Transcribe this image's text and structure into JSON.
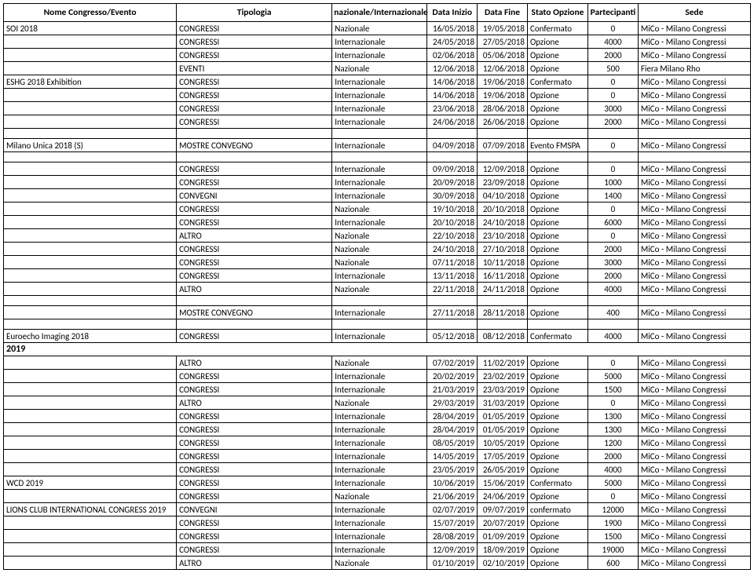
{
  "columns": {
    "nome": "Nome Congresso/Evento",
    "tipologia": "Tipologia",
    "naz": "nazionale/Internazionale",
    "inizio": "Data Inizio",
    "fine": "Data Fine",
    "stato": "Stato Opzione",
    "part": "Partecipanti",
    "sede": "Sede"
  },
  "rows": [
    {
      "nome": "SOI 2018",
      "tipologia": "CONGRESSI",
      "naz": "Nazionale",
      "inizio": "16/05/2018",
      "fine": "19/05/2018",
      "stato": "Confermato",
      "part": "0",
      "sede": "MiCo - Milano Congressi"
    },
    {
      "nome": "",
      "tipologia": "CONGRESSI",
      "naz": "Internazionale",
      "inizio": "24/05/2018",
      "fine": "27/05/2018",
      "stato": "Opzione",
      "part": "4000",
      "sede": "MiCo - Milano Congressi"
    },
    {
      "nome": "",
      "tipologia": "CONGRESSI",
      "naz": "Internazionale",
      "inizio": "02/06/2018",
      "fine": "05/06/2018",
      "stato": "Opzione",
      "part": "2000",
      "sede": "MiCo - Milano Congressi"
    },
    {
      "nome": "",
      "tipologia": "EVENTI",
      "naz": "Nazionale",
      "inizio": "12/06/2018",
      "fine": "12/06/2018",
      "stato": "Opzione",
      "part": "500",
      "sede": "Fiera Milano Rho"
    },
    {
      "nome": "ESHG 2018 Exhibition",
      "tipologia": "CONGRESSI",
      "naz": "Internazionale",
      "inizio": "14/06/2018",
      "fine": "19/06/2018",
      "stato": "Confermato",
      "part": "0",
      "sede": "MiCo - Milano Congressi"
    },
    {
      "nome": "",
      "tipologia": "CONGRESSI",
      "naz": "Internazionale",
      "inizio": "14/06/2018",
      "fine": "19/06/2018",
      "stato": "Opzione",
      "part": "0",
      "sede": "MiCo - Milano Congressi"
    },
    {
      "nome": "",
      "tipologia": "CONGRESSI",
      "naz": "Internazionale",
      "inizio": "23/06/2018",
      "fine": "28/06/2018",
      "stato": "Opzione",
      "part": "3000",
      "sede": "MiCo - Milano Congressi"
    },
    {
      "nome": "",
      "tipologia": "CONGRESSI",
      "naz": "Internazionale",
      "inizio": "24/06/2018",
      "fine": "26/06/2018",
      "stato": "Opzione",
      "part": "2000",
      "sede": "MiCo - Milano Congressi"
    },
    {
      "spacer": true
    },
    {
      "nome": "Milano Unica 2018 (S)",
      "tipologia": "MOSTRE CONVEGNO",
      "naz": "Internazionale",
      "inizio": "04/09/2018",
      "fine": "07/09/2018",
      "stato": "Evento FMSPA",
      "part": "0",
      "sede": "MiCo - Milano Congressi"
    },
    {
      "spacer": true
    },
    {
      "nome": "",
      "tipologia": "CONGRESSI",
      "naz": "Internazionale",
      "inizio": "09/09/2018",
      "fine": "12/09/2018",
      "stato": "Opzione",
      "part": "0",
      "sede": "MiCo - Milano Congressi"
    },
    {
      "nome": "",
      "tipologia": "CONGRESSI",
      "naz": "Internazionale",
      "inizio": "20/09/2018",
      "fine": "23/09/2018",
      "stato": "Opzione",
      "part": "1000",
      "sede": "MiCo - Milano Congressi"
    },
    {
      "nome": "",
      "tipologia": "CONVEGNI",
      "naz": "Internazionale",
      "inizio": "30/09/2018",
      "fine": "04/10/2018",
      "stato": "Opzione",
      "part": "1400",
      "sede": "MiCo - Milano Congressi"
    },
    {
      "nome": "",
      "tipologia": "CONGRESSI",
      "naz": "Nazionale",
      "inizio": "19/10/2018",
      "fine": "20/10/2018",
      "stato": "Opzione",
      "part": "0",
      "sede": "MiCo - Milano Congressi"
    },
    {
      "nome": "",
      "tipologia": "CONGRESSI",
      "naz": "Internazionale",
      "inizio": "20/10/2018",
      "fine": "24/10/2018",
      "stato": "Opzione",
      "part": "6000",
      "sede": "MiCo - Milano Congressi"
    },
    {
      "nome": "",
      "tipologia": "ALTRO",
      "naz": "Nazionale",
      "inizio": "22/10/2018",
      "fine": "23/10/2018",
      "stato": "Opzione",
      "part": "0",
      "sede": "MiCo - Milano Congressi"
    },
    {
      "nome": "",
      "tipologia": "CONGRESSI",
      "naz": "Nazionale",
      "inizio": "24/10/2018",
      "fine": "27/10/2018",
      "stato": "Opzione",
      "part": "2000",
      "sede": "MiCo - Milano Congressi"
    },
    {
      "nome": "",
      "tipologia": "CONGRESSI",
      "naz": "Nazionale",
      "inizio": "07/11/2018",
      "fine": "10/11/2018",
      "stato": "Opzione",
      "part": "3000",
      "sede": "MiCo - Milano Congressi"
    },
    {
      "nome": "",
      "tipologia": "CONGRESSI",
      "naz": "Internazionale",
      "inizio": "13/11/2018",
      "fine": "16/11/2018",
      "stato": "Opzione",
      "part": "2000",
      "sede": "MiCo - Milano Congressi"
    },
    {
      "nome": "",
      "tipologia": "ALTRO",
      "naz": "Nazionale",
      "inizio": "22/11/2018",
      "fine": "24/11/2018",
      "stato": "Opzione",
      "part": "4000",
      "sede": "MiCo - Milano Congressi"
    },
    {
      "spacer": true
    },
    {
      "nome": "",
      "tipologia": "MOSTRE CONVEGNO",
      "naz": "Internazionale",
      "inizio": "27/11/2018",
      "fine": "28/11/2018",
      "stato": "Opzione",
      "part": "400",
      "sede": "MiCo - Milano Congressi"
    },
    {
      "spacer": true
    },
    {
      "nome": "Euroecho Imaging 2018",
      "tipologia": "CONGRESSI",
      "naz": "Internazionale",
      "inizio": "05/12/2018",
      "fine": "08/12/2018",
      "stato": "Confermato",
      "part": "4000",
      "sede": "MiCo - Milano Congressi"
    },
    {
      "year": "2019"
    },
    {
      "nome": "",
      "tipologia": "ALTRO",
      "naz": "Nazionale",
      "inizio": "07/02/2019",
      "fine": "11/02/2019",
      "stato": "Opzione",
      "part": "0",
      "sede": "MiCo - Milano Congressi"
    },
    {
      "nome": "",
      "tipologia": "CONGRESSI",
      "naz": "Internazionale",
      "inizio": "20/02/2019",
      "fine": "23/02/2019",
      "stato": "Opzione",
      "part": "5000",
      "sede": "MiCo - Milano Congressi"
    },
    {
      "nome": "",
      "tipologia": "CONGRESSI",
      "naz": "Internazionale",
      "inizio": "21/03/2019",
      "fine": "23/03/2019",
      "stato": "Opzione",
      "part": "1500",
      "sede": "MiCo - Milano Congressi"
    },
    {
      "nome": "",
      "tipologia": "ALTRO",
      "naz": "Nazionale",
      "inizio": "29/03/2019",
      "fine": "31/03/2019",
      "stato": "Opzione",
      "part": "0",
      "sede": "MiCo - Milano Congressi"
    },
    {
      "nome": "",
      "tipologia": "CONGRESSI",
      "naz": "Internazionale",
      "inizio": "28/04/2019",
      "fine": "01/05/2019",
      "stato": "Opzione",
      "part": "1300",
      "sede": "MiCo - Milano Congressi"
    },
    {
      "nome": "",
      "tipologia": "CONGRESSI",
      "naz": "Internazionale",
      "inizio": "28/04/2019",
      "fine": "01/05/2019",
      "stato": "Opzione",
      "part": "1300",
      "sede": "MiCo - Milano Congressi"
    },
    {
      "nome": "",
      "tipologia": "CONGRESSI",
      "naz": "Internazionale",
      "inizio": "08/05/2019",
      "fine": "10/05/2019",
      "stato": "Opzione",
      "part": "1200",
      "sede": "MiCo - Milano Congressi"
    },
    {
      "nome": "",
      "tipologia": "CONGRESSI",
      "naz": "Internazionale",
      "inizio": "14/05/2019",
      "fine": "17/05/2019",
      "stato": "Opzione",
      "part": "2000",
      "sede": "MiCo - Milano Congressi"
    },
    {
      "nome": "",
      "tipologia": "CONGRESSI",
      "naz": "Internazionale",
      "inizio": "23/05/2019",
      "fine": "26/05/2019",
      "stato": "Opzione",
      "part": "4000",
      "sede": "MiCo - Milano Congressi"
    },
    {
      "nome": "WCD 2019",
      "tipologia": "CONGRESSI",
      "naz": "Internazionale",
      "inizio": "10/06/2019",
      "fine": "15/06/2019",
      "stato": "Confermato",
      "part": "5000",
      "sede": "MiCo - Milano Congressi"
    },
    {
      "nome": "",
      "tipologia": "CONGRESSI",
      "naz": "Nazionale",
      "inizio": "21/06/2019",
      "fine": "24/06/2019",
      "stato": "Opzione",
      "part": "0",
      "sede": "MiCo - Milano Congressi"
    },
    {
      "nome": "LIONS CLUB INTERNATIONAL CONGRESS 2019",
      "tipologia": "CONVEGNI",
      "naz": "Internazionale",
      "inizio": "02/07/2019",
      "fine": "09/07/2019",
      "stato": "confermato",
      "part": "12000",
      "sede": "MiCo - Milano Congressi"
    },
    {
      "nome": "",
      "tipologia": "CONGRESSI",
      "naz": "Internazionale",
      "inizio": "15/07/2019",
      "fine": "20/07/2019",
      "stato": "Opzione",
      "part": "1900",
      "sede": "MiCo - Milano Congressi"
    },
    {
      "nome": "",
      "tipologia": "CONGRESSI",
      "naz": "Internazionale",
      "inizio": "28/08/2019",
      "fine": "01/09/2019",
      "stato": "Opzione",
      "part": "1500",
      "sede": "MiCo - Milano Congressi"
    },
    {
      "nome": "",
      "tipologia": "CONGRESSI",
      "naz": "Internazionale",
      "inizio": "12/09/2019",
      "fine": "18/09/2019",
      "stato": "Opzione",
      "part": "19000",
      "sede": "MiCo - Milano Congressi"
    },
    {
      "nome": "",
      "tipologia": "ALTRO",
      "naz": "Nazionale",
      "inizio": "01/10/2019",
      "fine": "02/10/2019",
      "stato": "Opzione",
      "part": "600",
      "sede": "MiCo - Milano Congressi"
    }
  ]
}
